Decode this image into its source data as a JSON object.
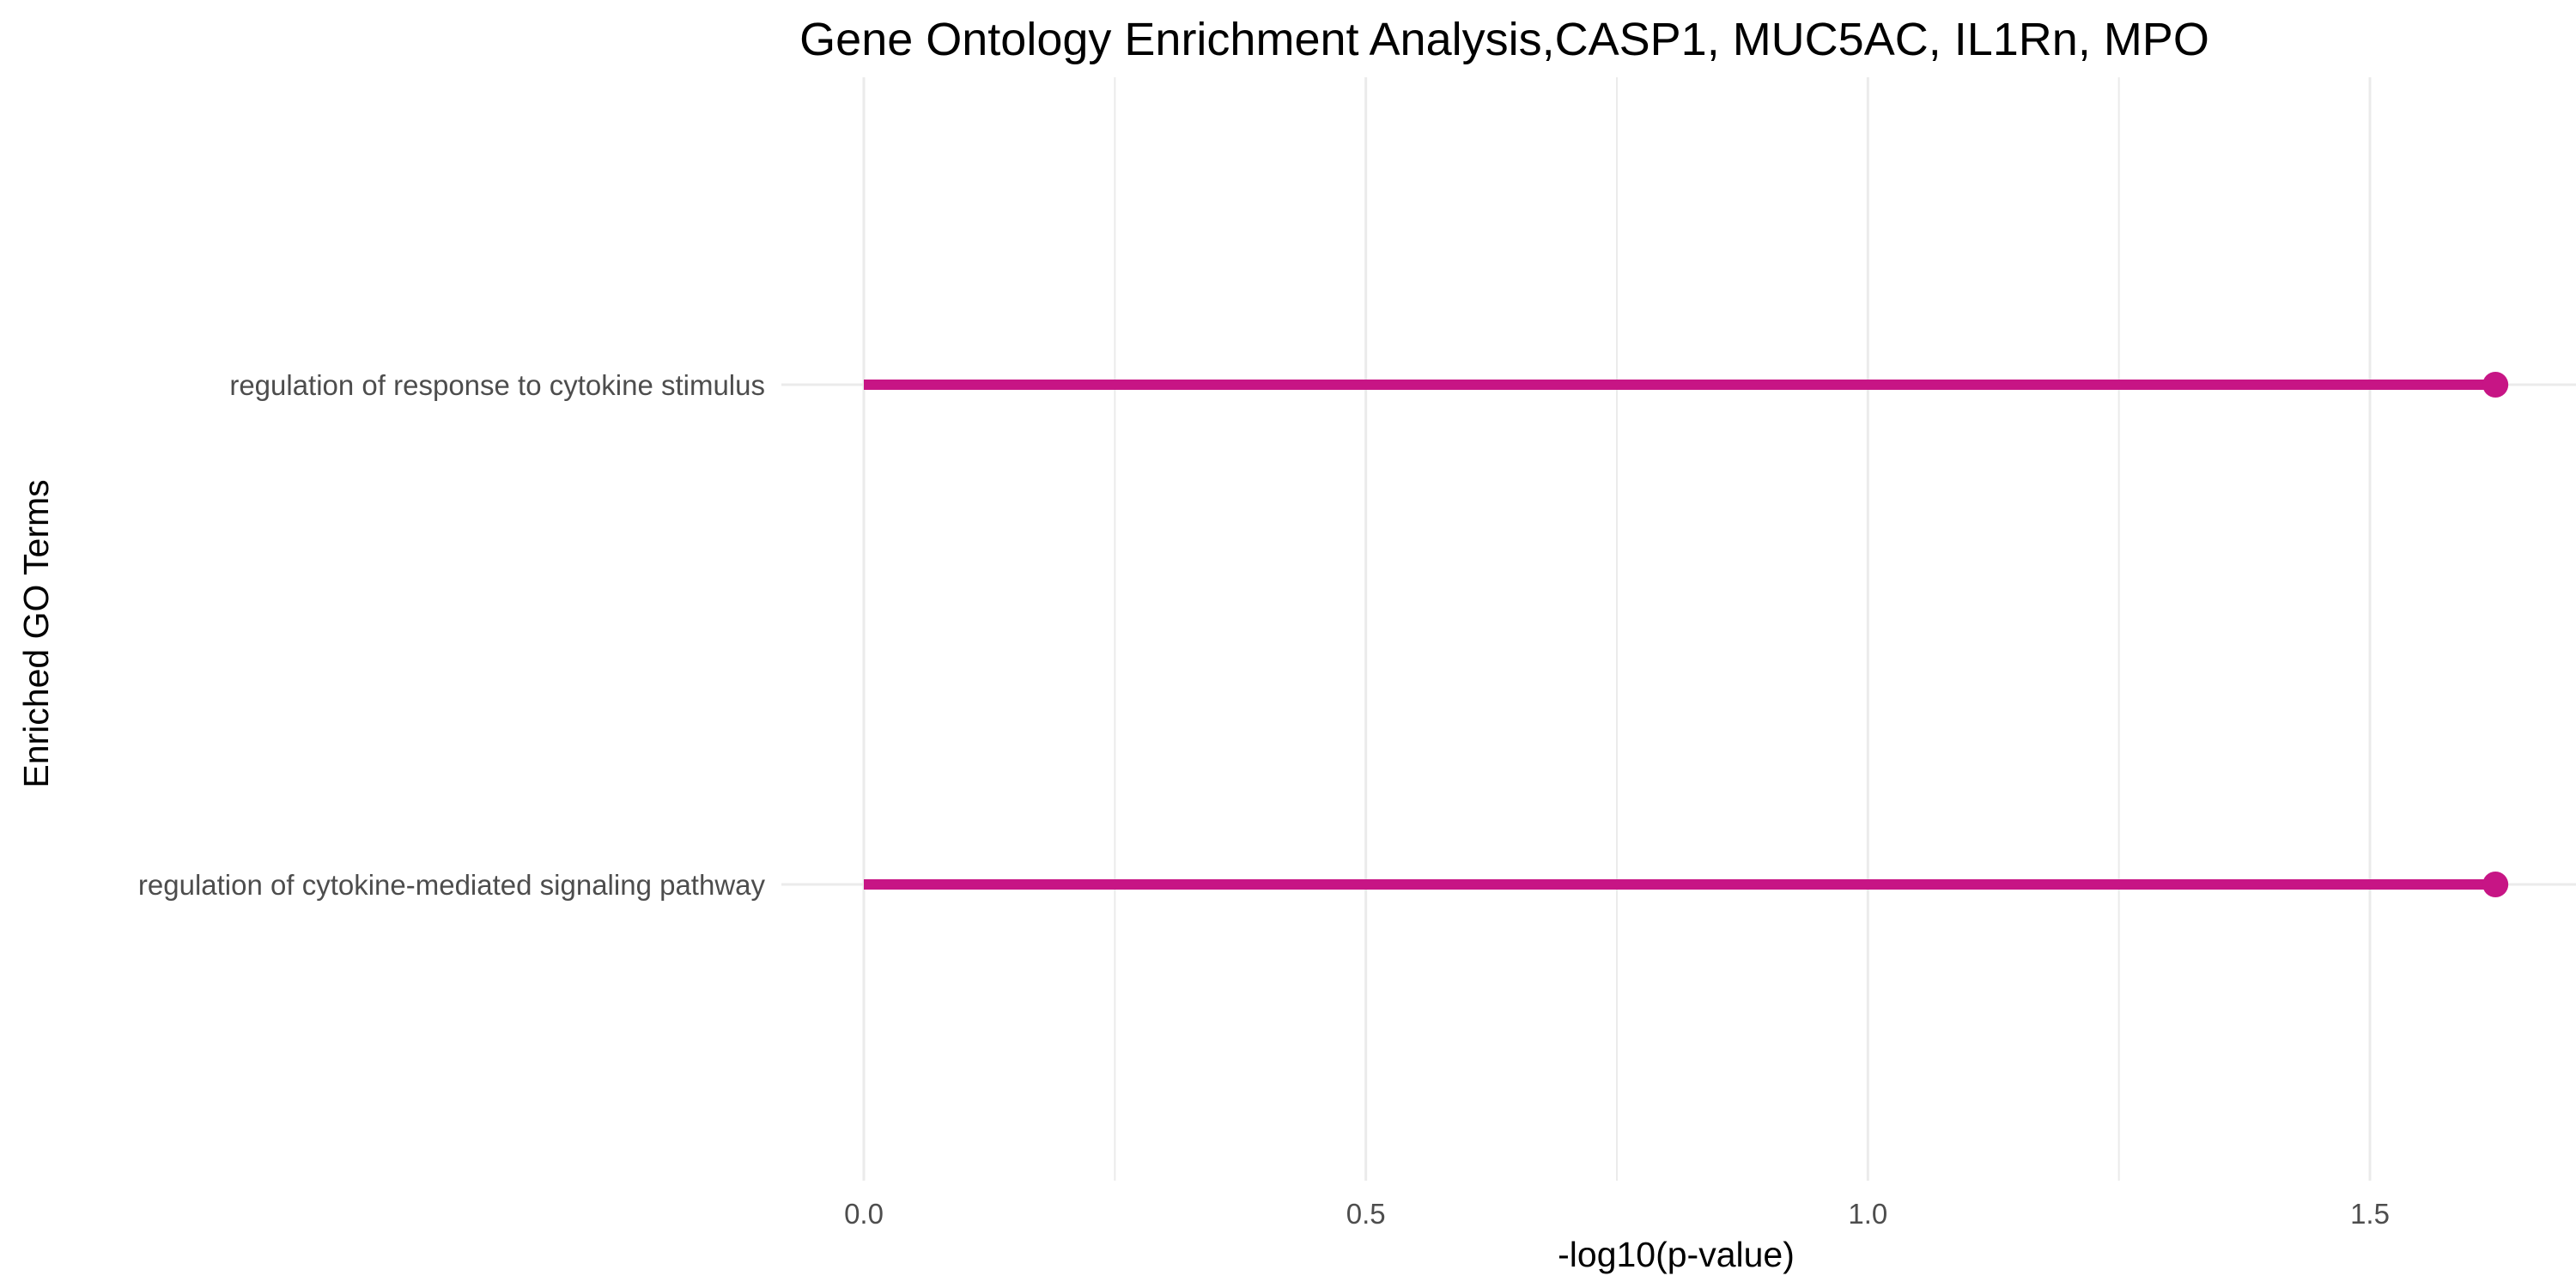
{
  "chart_data": {
    "type": "lollipop",
    "title": "Gene Ontology Enrichment Analysis,CASP1, MUC5AC, IL1Rn, MPO",
    "xlabel": "-log10(p-value)",
    "ylabel": "Enriched GO Terms",
    "xlim": [
      0,
      1.69
    ],
    "x_ticks": [
      "0.0",
      "0.5",
      "1.0",
      "1.5"
    ],
    "grid": true,
    "color": "#C71585",
    "categories": [
      "regulation of response to cytokine stimulus",
      "regulation of cytokine-mediated signaling pathway"
    ],
    "values": [
      1.625,
      1.625
    ]
  }
}
